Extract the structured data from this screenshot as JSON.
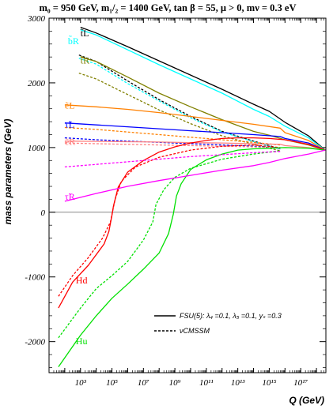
{
  "chart_data": {
    "type": "line",
    "title": "m₀ = 950 GeV, m₁/₂ = 1400 GeV, tan β = 55,  μ > 0, mν = 0.3 eV",
    "xlabel": "Q (GeV)",
    "ylabel": "mass parameters (GeV)",
    "x_scale": "log10",
    "x_log_range": [
      1.0,
      18.6
    ],
    "ylim": [
      -2480,
      3000
    ],
    "x_tick_labels": [
      {
        "label": "10³",
        "log10": 3
      },
      {
        "label": "10⁵",
        "log10": 5
      },
      {
        "label": "10⁷",
        "log10": 7
      },
      {
        "label": "10⁹",
        "log10": 9
      },
      {
        "label": "10¹¹",
        "log10": 11
      },
      {
        "label": "10¹³",
        "log10": 13
      },
      {
        "label": "10¹⁵",
        "log10": 15
      },
      {
        "label": "10¹⁷",
        "log10": 17
      }
    ],
    "y_tick_labels": [
      "3000",
      "2000",
      "1000",
      "0",
      "-1000",
      "-2000"
    ],
    "y_tick_values": [
      3000,
      2000,
      1000,
      0,
      -1000,
      -2000
    ],
    "legend": [
      {
        "label": "FSU(5): λ₄ =0.1, λ₅ =0.1, yₛ =0.3",
        "style": "solid"
      },
      {
        "label": "νCMSSM",
        "style": "dashed"
      }
    ],
    "colors": {
      "tL": "#000000",
      "bR": "#00ffff",
      "tR": "#808000",
      "eL": "#ff8000",
      "tauL": "#0000ff",
      "eR": "#ff8080",
      "Hd": "#ff0000",
      "Hu": "#00e000",
      "tauR": "#ff00ff"
    },
    "series": [
      {
        "key": "tL",
        "name": "t̃L",
        "style": "solid",
        "points": [
          [
            3.0,
            2860
          ],
          [
            4,
            2770
          ],
          [
            6,
            2560
          ],
          [
            8,
            2340
          ],
          [
            10,
            2120
          ],
          [
            12,
            1900
          ],
          [
            14,
            1670
          ],
          [
            15.0,
            1560
          ],
          [
            16.0,
            1390
          ],
          [
            17.5,
            1180
          ],
          [
            18.56,
            960
          ]
        ]
      },
      {
        "key": "tL",
        "name": "t̃L",
        "style": "dashed",
        "points": [
          [
            2.9,
            2430
          ],
          [
            4,
            2330
          ],
          [
            6,
            2030
          ],
          [
            8,
            1740
          ],
          [
            10,
            1480
          ],
          [
            12,
            1250
          ],
          [
            14,
            1100
          ],
          [
            15.7,
            980
          ]
        ]
      },
      {
        "key": "bR",
        "name": "b̃R",
        "style": "solid",
        "points": [
          [
            3.0,
            2820
          ],
          [
            4,
            2740
          ],
          [
            6,
            2510
          ],
          [
            8,
            2280
          ],
          [
            10,
            2060
          ],
          [
            12,
            1840
          ],
          [
            14,
            1590
          ],
          [
            15.0,
            1480
          ],
          [
            16.0,
            1330
          ],
          [
            17.5,
            1150
          ],
          [
            18.56,
            960
          ]
        ]
      },
      {
        "key": "bR",
        "name": "b̃R",
        "style": "dashed",
        "points": [
          [
            2.9,
            2380
          ],
          [
            4,
            2290
          ],
          [
            6,
            1990
          ],
          [
            8,
            1720
          ],
          [
            10,
            1460
          ],
          [
            12,
            1240
          ],
          [
            14,
            1090
          ],
          [
            15.7,
            975
          ]
        ]
      },
      {
        "key": "tR",
        "name": "t̃R",
        "style": "solid",
        "points": [
          [
            3.0,
            2400
          ],
          [
            4,
            2330
          ],
          [
            6,
            2090
          ],
          [
            8,
            1840
          ],
          [
            10,
            1630
          ],
          [
            12,
            1430
          ],
          [
            14,
            1250
          ],
          [
            15.0,
            1190
          ],
          [
            16.0,
            1120
          ],
          [
            17.5,
            1040
          ],
          [
            18.56,
            960
          ]
        ]
      },
      {
        "key": "tR",
        "name": "t̃R",
        "style": "dashed",
        "points": [
          [
            2.9,
            2150
          ],
          [
            4,
            2060
          ],
          [
            6,
            1820
          ],
          [
            8,
            1580
          ],
          [
            10,
            1370
          ],
          [
            12,
            1180
          ],
          [
            14,
            1050
          ],
          [
            15.7,
            950
          ]
        ]
      },
      {
        "key": "eL",
        "name": "ẽL",
        "style": "solid",
        "points": [
          [
            2.0,
            1660
          ],
          [
            4,
            1630
          ],
          [
            6,
            1590
          ],
          [
            8,
            1540
          ],
          [
            10,
            1480
          ],
          [
            12,
            1420
          ],
          [
            14,
            1360
          ],
          [
            15.7,
            1300
          ],
          [
            16.0,
            1230
          ],
          [
            17.5,
            1110
          ],
          [
            18.56,
            960
          ]
        ]
      },
      {
        "key": "eL",
        "name": "ẽL",
        "style": "dashed",
        "points": [
          [
            2.0,
            1310
          ],
          [
            4,
            1280
          ],
          [
            6,
            1240
          ],
          [
            8,
            1200
          ],
          [
            10,
            1160
          ],
          [
            12,
            1120
          ],
          [
            14,
            1080
          ],
          [
            15.7,
            1040
          ]
        ]
      },
      {
        "key": "tauL",
        "name": "τ̃L",
        "style": "solid",
        "points": [
          [
            2.0,
            1380
          ],
          [
            4,
            1350
          ],
          [
            6,
            1320
          ],
          [
            8,
            1290
          ],
          [
            10,
            1260
          ],
          [
            12,
            1230
          ],
          [
            14,
            1200
          ],
          [
            15.7,
            1170
          ],
          [
            16.0,
            1140
          ],
          [
            17.5,
            1070
          ],
          [
            18.56,
            960
          ]
        ]
      },
      {
        "key": "tauL",
        "name": "τ̃L",
        "style": "dashed",
        "points": [
          [
            2.0,
            1150
          ],
          [
            4,
            1120
          ],
          [
            6,
            1100
          ],
          [
            8,
            1080
          ],
          [
            10,
            1060
          ],
          [
            12,
            1040
          ],
          [
            14,
            1020
          ],
          [
            15.7,
            990
          ]
        ]
      },
      {
        "key": "eR",
        "name": "ẽR",
        "style": "solid",
        "points": [
          [
            2.0,
            1100
          ],
          [
            4,
            1095
          ],
          [
            6,
            1090
          ],
          [
            8,
            1085
          ],
          [
            10,
            1075
          ],
          [
            12,
            1070
          ],
          [
            14,
            1060
          ],
          [
            15.7,
            1050
          ],
          [
            16.0,
            1030
          ],
          [
            17.5,
            1000
          ],
          [
            18.56,
            960
          ]
        ]
      },
      {
        "key": "eR",
        "name": "ẽR",
        "style": "dashed",
        "points": [
          [
            2.0,
            1070
          ],
          [
            4,
            1060
          ],
          [
            6,
            1050
          ],
          [
            8,
            1040
          ],
          [
            10,
            1030
          ],
          [
            12,
            1020
          ],
          [
            14,
            1010
          ],
          [
            15.7,
            990
          ]
        ]
      },
      {
        "key": "Hd",
        "name": "Hd",
        "style": "solid",
        "points": [
          [
            1.6,
            -1480
          ],
          [
            2.5,
            -1080
          ],
          [
            3.5,
            -820
          ],
          [
            4.5,
            -490
          ],
          [
            4.8,
            -300
          ],
          [
            5.0,
            -50
          ],
          [
            5.1,
            100
          ],
          [
            5.4,
            390
          ],
          [
            6,
            620
          ],
          [
            7,
            800
          ],
          [
            8,
            930
          ],
          [
            9,
            1010
          ],
          [
            10,
            1070
          ],
          [
            11,
            1110
          ],
          [
            12,
            1140
          ],
          [
            13,
            1150
          ],
          [
            14,
            1150
          ],
          [
            15.0,
            1140
          ],
          [
            16.0,
            1120
          ],
          [
            17.5,
            1050
          ],
          [
            18.56,
            960
          ]
        ]
      },
      {
        "key": "Hd",
        "name": "Hd",
        "style": "dashed",
        "points": [
          [
            1.6,
            -1300
          ],
          [
            2.5,
            -980
          ],
          [
            3.5,
            -700
          ],
          [
            4.4,
            -400
          ],
          [
            4.9,
            -150
          ],
          [
            5.2,
            200
          ],
          [
            5.6,
            480
          ],
          [
            6.5,
            700
          ],
          [
            8,
            850
          ],
          [
            10,
            960
          ],
          [
            12,
            1020
          ],
          [
            14,
            1040
          ],
          [
            15.7,
            1000
          ]
        ]
      },
      {
        "key": "Hu",
        "name": "Hu",
        "style": "solid",
        "points": [
          [
            1.6,
            -2390
          ],
          [
            3,
            -1900
          ],
          [
            4,
            -1600
          ],
          [
            5,
            -1330
          ],
          [
            6,
            -1110
          ],
          [
            7,
            -880
          ],
          [
            8,
            -630
          ],
          [
            8.6,
            -330
          ],
          [
            8.9,
            -30
          ],
          [
            9.1,
            250
          ],
          [
            9.4,
            440
          ],
          [
            10,
            660
          ],
          [
            11,
            810
          ],
          [
            12,
            900
          ],
          [
            13,
            960
          ],
          [
            14,
            980
          ],
          [
            15.0,
            990
          ],
          [
            16.0,
            1000
          ],
          [
            17.5,
            990
          ],
          [
            18.56,
            960
          ]
        ]
      },
      {
        "key": "Hu",
        "name": "Hu",
        "style": "dashed",
        "points": [
          [
            1.6,
            -1940
          ],
          [
            3,
            -1480
          ],
          [
            4,
            -1180
          ],
          [
            5,
            -980
          ],
          [
            6,
            -760
          ],
          [
            7,
            -430
          ],
          [
            7.6,
            -150
          ],
          [
            7.8,
            120
          ],
          [
            8.3,
            350
          ],
          [
            9,
            540
          ],
          [
            10,
            680
          ],
          [
            12,
            820
          ],
          [
            14,
            900
          ],
          [
            15.7,
            950
          ]
        ]
      },
      {
        "key": "tauR",
        "name": "τ̃R",
        "style": "solid",
        "points": [
          [
            2.0,
            170
          ],
          [
            4,
            290
          ],
          [
            6,
            400
          ],
          [
            8,
            490
          ],
          [
            10,
            570
          ],
          [
            12,
            650
          ],
          [
            14,
            720
          ],
          [
            15.0,
            770
          ],
          [
            16.0,
            830
          ],
          [
            17.5,
            900
          ],
          [
            18.56,
            960
          ]
        ]
      },
      {
        "key": "tauR",
        "name": "τ̃R",
        "style": "dashed",
        "points": [
          [
            2.0,
            700
          ],
          [
            4,
            740
          ],
          [
            6,
            780
          ],
          [
            8,
            820
          ],
          [
            10,
            860
          ],
          [
            12,
            890
          ],
          [
            14,
            920
          ],
          [
            15.7,
            940
          ]
        ]
      }
    ],
    "curve_labels": [
      {
        "key": "tL",
        "text": "t̃L",
        "x_log": 3.0,
        "y": 2720
      },
      {
        "key": "bR",
        "text": "b̃R",
        "x_log": 2.2,
        "y": 2600
      },
      {
        "key": "tR",
        "text": "t̃R",
        "x_log": 3.0,
        "y": 2300
      },
      {
        "key": "eL",
        "text": "ẽL",
        "x_log": 2.0,
        "y": 1600
      },
      {
        "key": "tauL",
        "text": "τ̃L",
        "x_log": 2.0,
        "y": 1310
      },
      {
        "key": "eR",
        "text": "ẽR",
        "x_log": 2.0,
        "y": 1040
      },
      {
        "key": "tauR",
        "text": "τ̃R",
        "x_log": 2.0,
        "y": 190
      },
      {
        "key": "Hd",
        "text": "Hd",
        "x_log": 2.7,
        "y": -1100
      },
      {
        "key": "Hu",
        "text": "Hu",
        "x_log": 2.7,
        "y": -2040
      }
    ]
  }
}
